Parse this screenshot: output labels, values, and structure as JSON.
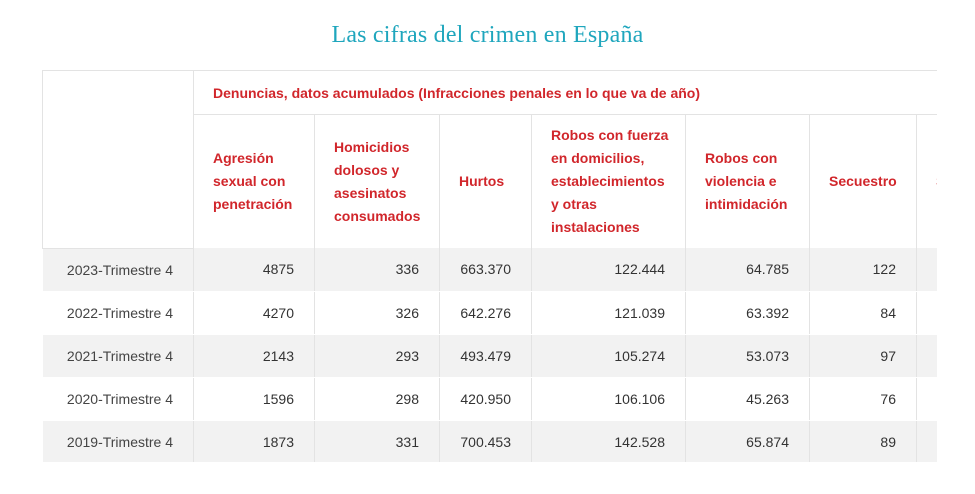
{
  "title": "Las cifras del crimen en España",
  "table": {
    "group_header": "Denuncias, datos acumulados (Infracciones penales en lo que va de año)",
    "columns": [
      "Agresión sexual con penetración",
      "Homicidios dolosos y asesinatos consumados",
      "Hurtos",
      "Robos con fuerza en domicilios, establecimientos y otras instalaciones",
      "Robos con violencia e intimidación",
      "Secuestro",
      "S..."
    ],
    "rows": [
      {
        "period": "2023-Trimestre 4",
        "values": [
          "4875",
          "336",
          "663.370",
          "122.444",
          "64.785",
          "122",
          ""
        ]
      },
      {
        "period": "2022-Trimestre 4",
        "values": [
          "4270",
          "326",
          "642.276",
          "121.039",
          "63.392",
          "84",
          ""
        ]
      },
      {
        "period": "2021-Trimestre 4",
        "values": [
          "2143",
          "293",
          "493.479",
          "105.274",
          "53.073",
          "97",
          ""
        ]
      },
      {
        "period": "2020-Trimestre 4",
        "values": [
          "1596",
          "298",
          "420.950",
          "106.106",
          "45.263",
          "76",
          ""
        ]
      },
      {
        "period": "2019-Trimestre 4",
        "values": [
          "1873",
          "331",
          "700.453",
          "142.528",
          "65.874",
          "89",
          ""
        ]
      }
    ]
  },
  "colors": {
    "title": "#1fa6bd",
    "header_text": "#d1262b",
    "row_shade": "#f2f2f2"
  }
}
